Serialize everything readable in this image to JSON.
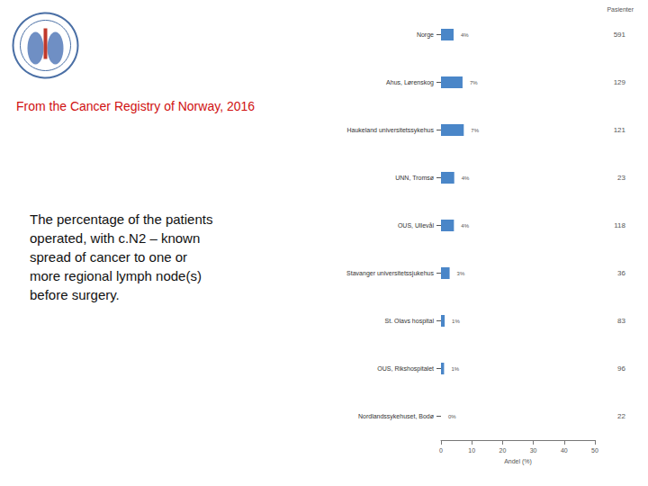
{
  "chart_data": {
    "type": "bar",
    "orientation": "horizontal",
    "title": "From the Cancer Registry of Norway, 2016",
    "description_lines": [
      "The percentage of the patients",
      "operated, with c.N2 – known",
      "spread of cancer to one or",
      "more regional lymph node(s)",
      "before surgery."
    ],
    "categories": [
      "Norge",
      "Ahus, Lørenskog",
      "Haukeland universitetssykehus",
      "UNN, Tromsø",
      "OUS, Ullevål",
      "Stavanger universitetssjukehus",
      "St. Olavs hospital",
      "OUS, Rikshospitalet",
      "Nordlandssykehuset, Bodø"
    ],
    "values": [
      4.1,
      7.0,
      7.4,
      4.3,
      4.2,
      2.8,
      1.2,
      1.0,
      0
    ],
    "value_labels": [
      "4%",
      "7%",
      "7%",
      "4%",
      "4%",
      "3%",
      "1%",
      "1%",
      "0%"
    ],
    "data_labels": true,
    "color": "#4a86c8",
    "x_label": "Andel (%)",
    "xlim": [
      0,
      50
    ],
    "xticks": [
      0,
      10,
      20,
      30,
      40,
      50
    ],
    "grid": false,
    "patients_label": "Pasienter",
    "patients": [
      591,
      129,
      121,
      23,
      118,
      36,
      83,
      96,
      22
    ]
  }
}
